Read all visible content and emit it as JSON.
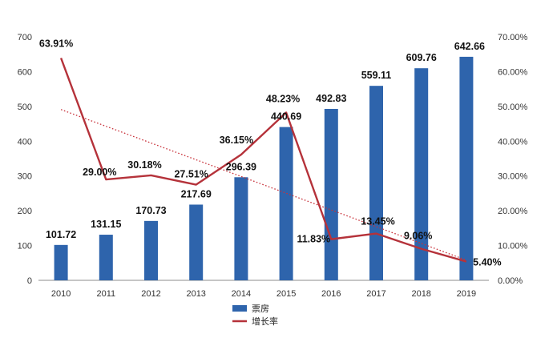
{
  "chart_data": {
    "type": "bar+line",
    "title": "",
    "xlabel": "",
    "ylabel": "",
    "categories": [
      "2010",
      "2011",
      "2012",
      "2013",
      "2014",
      "2015",
      "2016",
      "2017",
      "2018",
      "2019"
    ],
    "ylim_left": [
      0,
      700
    ],
    "yticks_left": [
      "0",
      "100",
      "200",
      "300",
      "400",
      "500",
      "600",
      "700"
    ],
    "ylim_right": [
      0,
      70
    ],
    "yticks_right": [
      "0.00%",
      "10.00%",
      "20.00%",
      "30.00%",
      "40.00%",
      "50.00%",
      "60.00%",
      "70.00%"
    ],
    "series": [
      {
        "name": "票房",
        "type": "bar",
        "axis": "left",
        "values": [
          101.72,
          131.15,
          170.73,
          217.69,
          296.39,
          440.69,
          492.83,
          559.11,
          609.76,
          642.66
        ],
        "labels": [
          "101.72",
          "131.15",
          "170.73",
          "217.69",
          "296.39",
          "440.69",
          "492.83",
          "559.11",
          "609.76",
          "642.66"
        ]
      },
      {
        "name": "增长率",
        "type": "line",
        "axis": "right",
        "values": [
          63.91,
          29.0,
          30.18,
          27.51,
          36.15,
          48.23,
          11.83,
          13.45,
          9.06,
          5.4
        ],
        "labels": [
          "63.91%",
          "29.00%",
          "30.18%",
          "27.51%",
          "36.15%",
          "48.23%",
          "11.83%",
          "13.45%",
          "9.06%",
          "5.40%"
        ]
      }
    ],
    "trendline": {
      "series": "增长率",
      "style": "dotted",
      "from": 49.1,
      "to": 5.8
    },
    "colors": {
      "bar": "#2E64AC",
      "line": "#B5323A",
      "trend": "#C8313A",
      "axis": "#8C8C8C"
    },
    "grid": false,
    "legend": {
      "position": "bottom-center",
      "items": [
        "票房",
        "增长率"
      ]
    }
  }
}
